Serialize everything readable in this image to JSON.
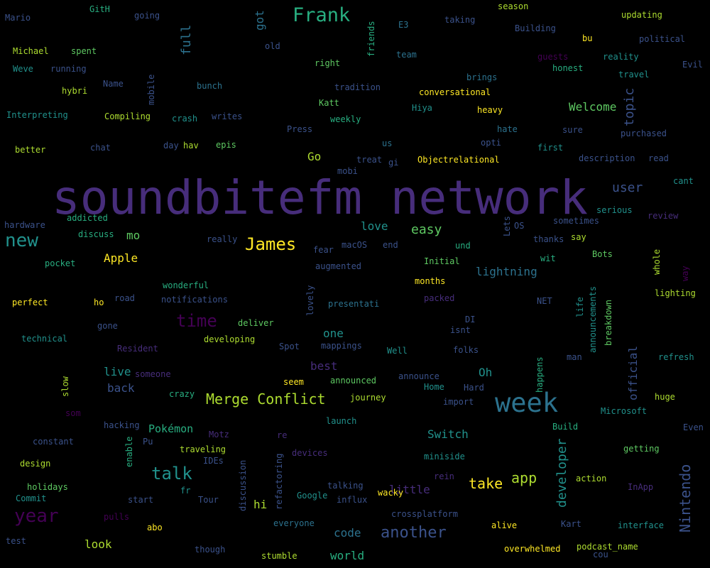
{
  "palette": {
    "background": "#000000",
    "dark_purple": "#440154",
    "purple": "#472d7b",
    "indigo": "#3b528b",
    "blue": "#2c728e",
    "teal": "#21918c",
    "green": "#28ae80",
    "light_green": "#5ec962",
    "lime": "#addc30",
    "yellow": "#fde725"
  },
  "words": [
    {
      "text": "soundbitefm network",
      "color": "purple"
    },
    {
      "text": "week",
      "color": "blue"
    },
    {
      "text": "Frank",
      "color": "green"
    },
    {
      "text": "James",
      "color": "yellow"
    },
    {
      "text": "Merge Conflict",
      "color": "lime"
    },
    {
      "text": "year",
      "color": "dark_purple"
    },
    {
      "text": "time",
      "color": "dark_purple"
    },
    {
      "text": "talk",
      "color": "teal"
    },
    {
      "text": "another",
      "color": "indigo"
    },
    {
      "text": "new",
      "color": "teal"
    },
    {
      "text": "Nintendo",
      "color": "indigo"
    },
    {
      "text": "developer",
      "color": "teal"
    },
    {
      "text": "take",
      "color": "yellow"
    },
    {
      "text": "app",
      "color": "lime"
    },
    {
      "text": "topic",
      "color": "indigo"
    },
    {
      "text": "easy",
      "color": "light_green"
    },
    {
      "text": "Welcome",
      "color": "light_green"
    },
    {
      "text": "user",
      "color": "indigo"
    },
    {
      "text": "full",
      "color": "blue"
    },
    {
      "text": "Switch",
      "color": "teal"
    },
    {
      "text": "Apple",
      "color": "yellow"
    },
    {
      "text": "lightning",
      "color": "blue"
    },
    {
      "text": "love",
      "color": "teal"
    },
    {
      "text": "official",
      "color": "indigo"
    },
    {
      "text": "little",
      "color": "purple"
    },
    {
      "text": "world",
      "color": "green"
    },
    {
      "text": "code",
      "color": "blue"
    },
    {
      "text": "Pokémon",
      "color": "green"
    },
    {
      "text": "live",
      "color": "teal"
    },
    {
      "text": "back",
      "color": "indigo"
    },
    {
      "text": "best",
      "color": "purple"
    },
    {
      "text": "Oh",
      "color": "teal"
    },
    {
      "text": "one",
      "color": "teal"
    },
    {
      "text": "Go",
      "color": "lime"
    },
    {
      "text": "look",
      "color": "lime"
    },
    {
      "text": "hi",
      "color": "lime"
    },
    {
      "text": "mo",
      "color": "light_green"
    },
    {
      "text": "got",
      "color": "blue"
    },
    {
      "text": "Mario",
      "color": "indigo"
    },
    {
      "text": "GitH",
      "color": "green"
    },
    {
      "text": "going",
      "color": "indigo"
    },
    {
      "text": "E3",
      "color": "blue"
    },
    {
      "text": "taking",
      "color": "indigo"
    },
    {
      "text": "season",
      "color": "lime"
    },
    {
      "text": "updating",
      "color": "lime"
    },
    {
      "text": "Michael",
      "color": "lime"
    },
    {
      "text": "spent",
      "color": "light_green"
    },
    {
      "text": "friends",
      "color": "green"
    },
    {
      "text": "Building",
      "color": "indigo"
    },
    {
      "text": "bu",
      "color": "yellow"
    },
    {
      "text": "political",
      "color": "indigo"
    },
    {
      "text": "old",
      "color": "indigo"
    },
    {
      "text": "team",
      "color": "blue"
    },
    {
      "text": "guests",
      "color": "dark_purple"
    },
    {
      "text": "reality",
      "color": "teal"
    },
    {
      "text": "Weve",
      "color": "teal"
    },
    {
      "text": "running",
      "color": "indigo"
    },
    {
      "text": "right",
      "color": "light_green"
    },
    {
      "text": "honest",
      "color": "green"
    },
    {
      "text": "Evil",
      "color": "indigo"
    },
    {
      "text": "travel",
      "color": "teal"
    },
    {
      "text": "mobile",
      "color": "indigo"
    },
    {
      "text": "Name",
      "color": "indigo"
    },
    {
      "text": "bunch",
      "color": "blue"
    },
    {
      "text": "tradition",
      "color": "indigo"
    },
    {
      "text": "brings",
      "color": "blue"
    },
    {
      "text": "hybri",
      "color": "lime"
    },
    {
      "text": "conversational",
      "color": "yellow"
    },
    {
      "text": "Interpreting",
      "color": "teal"
    },
    {
      "text": "Compiling",
      "color": "lime"
    },
    {
      "text": "crash",
      "color": "teal"
    },
    {
      "text": "writes",
      "color": "indigo"
    },
    {
      "text": "Katt",
      "color": "light_green"
    },
    {
      "text": "Hiya",
      "color": "teal"
    },
    {
      "text": "heavy",
      "color": "yellow"
    },
    {
      "text": "weekly",
      "color": "green"
    },
    {
      "text": "Press",
      "color": "indigo"
    },
    {
      "text": "hate",
      "color": "blue"
    },
    {
      "text": "sure",
      "color": "indigo"
    },
    {
      "text": "purchased",
      "color": "indigo"
    },
    {
      "text": "better",
      "color": "lime"
    },
    {
      "text": "chat",
      "color": "indigo"
    },
    {
      "text": "day",
      "color": "indigo"
    },
    {
      "text": "hav",
      "color": "lime"
    },
    {
      "text": "epis",
      "color": "light_green"
    },
    {
      "text": "us",
      "color": "blue"
    },
    {
      "text": "opti",
      "color": "indigo"
    },
    {
      "text": "first",
      "color": "teal"
    },
    {
      "text": "treat",
      "color": "indigo"
    },
    {
      "text": "gi",
      "color": "indigo"
    },
    {
      "text": "Objectrelational",
      "color": "yellow"
    },
    {
      "text": "description",
      "color": "indigo"
    },
    {
      "text": "read",
      "color": "indigo"
    },
    {
      "text": "cant",
      "color": "teal"
    },
    {
      "text": "mobi",
      "color": "indigo"
    },
    {
      "text": "serious",
      "color": "teal"
    },
    {
      "text": "hardware",
      "color": "indigo"
    },
    {
      "text": "addicted",
      "color": "green"
    },
    {
      "text": "review",
      "color": "purple"
    },
    {
      "text": "sometimes",
      "color": "indigo"
    },
    {
      "text": "discuss",
      "color": "green"
    },
    {
      "text": "really",
      "color": "indigo"
    },
    {
      "text": "Lets",
      "color": "indigo"
    },
    {
      "text": "OS",
      "color": "indigo"
    },
    {
      "text": "thanks",
      "color": "indigo"
    },
    {
      "text": "say",
      "color": "lime"
    },
    {
      "text": "fear",
      "color": "indigo"
    },
    {
      "text": "macOS",
      "color": "indigo"
    },
    {
      "text": "end",
      "color": "indigo"
    },
    {
      "text": "und",
      "color": "green"
    },
    {
      "text": "Bots",
      "color": "light_green"
    },
    {
      "text": "whole",
      "color": "lime"
    },
    {
      "text": "way",
      "color": "dark_purple"
    },
    {
      "text": "pocket",
      "color": "green"
    },
    {
      "text": "augmented",
      "color": "indigo"
    },
    {
      "text": "Initial",
      "color": "light_green"
    },
    {
      "text": "wit",
      "color": "green"
    },
    {
      "text": "lighting",
      "color": "lime"
    },
    {
      "text": "wonderful",
      "color": "green"
    },
    {
      "text": "months",
      "color": "yellow"
    },
    {
      "text": "perfect",
      "color": "yellow"
    },
    {
      "text": "ho",
      "color": "yellow"
    },
    {
      "text": "road",
      "color": "indigo"
    },
    {
      "text": "notifications",
      "color": "indigo"
    },
    {
      "text": "lovely",
      "color": "indigo"
    },
    {
      "text": "packed",
      "color": "purple"
    },
    {
      "text": "presentati",
      "color": "blue"
    },
    {
      "text": "NET",
      "color": "indigo"
    },
    {
      "text": "life",
      "color": "teal"
    },
    {
      "text": "announcements",
      "color": "teal"
    },
    {
      "text": "breakdown",
      "color": "light_green"
    },
    {
      "text": "deliver",
      "color": "light_green"
    },
    {
      "text": "DI",
      "color": "indigo"
    },
    {
      "text": "technical",
      "color": "teal"
    },
    {
      "text": "gone",
      "color": "indigo"
    },
    {
      "text": "isnt",
      "color": "indigo"
    },
    {
      "text": "developing",
      "color": "lime"
    },
    {
      "text": "Resident",
      "color": "purple"
    },
    {
      "text": "Spot",
      "color": "indigo"
    },
    {
      "text": "mappings",
      "color": "indigo"
    },
    {
      "text": "Well",
      "color": "teal"
    },
    {
      "text": "folks",
      "color": "indigo"
    },
    {
      "text": "refresh",
      "color": "teal"
    },
    {
      "text": "man",
      "color": "indigo"
    },
    {
      "text": "happens",
      "color": "green"
    },
    {
      "text": "someone",
      "color": "purple"
    },
    {
      "text": "slow",
      "color": "lime"
    },
    {
      "text": "crazy",
      "color": "green"
    },
    {
      "text": "seem",
      "color": "yellow"
    },
    {
      "text": "announced",
      "color": "light_green"
    },
    {
      "text": "announce",
      "color": "indigo"
    },
    {
      "text": "Home",
      "color": "teal"
    },
    {
      "text": "Hard",
      "color": "indigo"
    },
    {
      "text": "huge",
      "color": "lime"
    },
    {
      "text": "journey",
      "color": "lime"
    },
    {
      "text": "import",
      "color": "indigo"
    },
    {
      "text": "Microsoft",
      "color": "teal"
    },
    {
      "text": "som",
      "color": "dark_purple"
    },
    {
      "text": "hacking",
      "color": "indigo"
    },
    {
      "text": "launch",
      "color": "teal"
    },
    {
      "text": "Build",
      "color": "green"
    },
    {
      "text": "Even",
      "color": "indigo"
    },
    {
      "text": "constant",
      "color": "indigo"
    },
    {
      "text": "enable",
      "color": "green"
    },
    {
      "text": "Pu",
      "color": "indigo"
    },
    {
      "text": "Motz",
      "color": "purple"
    },
    {
      "text": "re",
      "color": "purple"
    },
    {
      "text": "traveling",
      "color": "lime"
    },
    {
      "text": "IDEs",
      "color": "indigo"
    },
    {
      "text": "devices",
      "color": "purple"
    },
    {
      "text": "miniside",
      "color": "teal"
    },
    {
      "text": "getting",
      "color": "light_green"
    },
    {
      "text": "design",
      "color": "lime"
    },
    {
      "text": "discussion",
      "color": "indigo"
    },
    {
      "text": "refactoring",
      "color": "indigo"
    },
    {
      "text": "rein",
      "color": "purple"
    },
    {
      "text": "wacky",
      "color": "yellow"
    },
    {
      "text": "action",
      "color": "lime"
    },
    {
      "text": "holidays",
      "color": "light_green"
    },
    {
      "text": "fr",
      "color": "teal"
    },
    {
      "text": "talking",
      "color": "indigo"
    },
    {
      "text": "InApp",
      "color": "purple"
    },
    {
      "text": "Commit",
      "color": "teal"
    },
    {
      "text": "start",
      "color": "indigo"
    },
    {
      "text": "Tour",
      "color": "indigo"
    },
    {
      "text": "Google",
      "color": "teal"
    },
    {
      "text": "influx",
      "color": "indigo"
    },
    {
      "text": "pulls",
      "color": "dark_purple"
    },
    {
      "text": "crossplatform",
      "color": "indigo"
    },
    {
      "text": "abo",
      "color": "yellow"
    },
    {
      "text": "everyone",
      "color": "blue"
    },
    {
      "text": "alive",
      "color": "yellow"
    },
    {
      "text": "Kart",
      "color": "indigo"
    },
    {
      "text": "interface",
      "color": "teal"
    },
    {
      "text": "test",
      "color": "indigo"
    },
    {
      "text": "though",
      "color": "indigo"
    },
    {
      "text": "stumble",
      "color": "lime"
    },
    {
      "text": "overwhelmed",
      "color": "yellow"
    },
    {
      "text": "podcast_name",
      "color": "lime"
    },
    {
      "text": "cou",
      "color": "indigo"
    }
  ]
}
